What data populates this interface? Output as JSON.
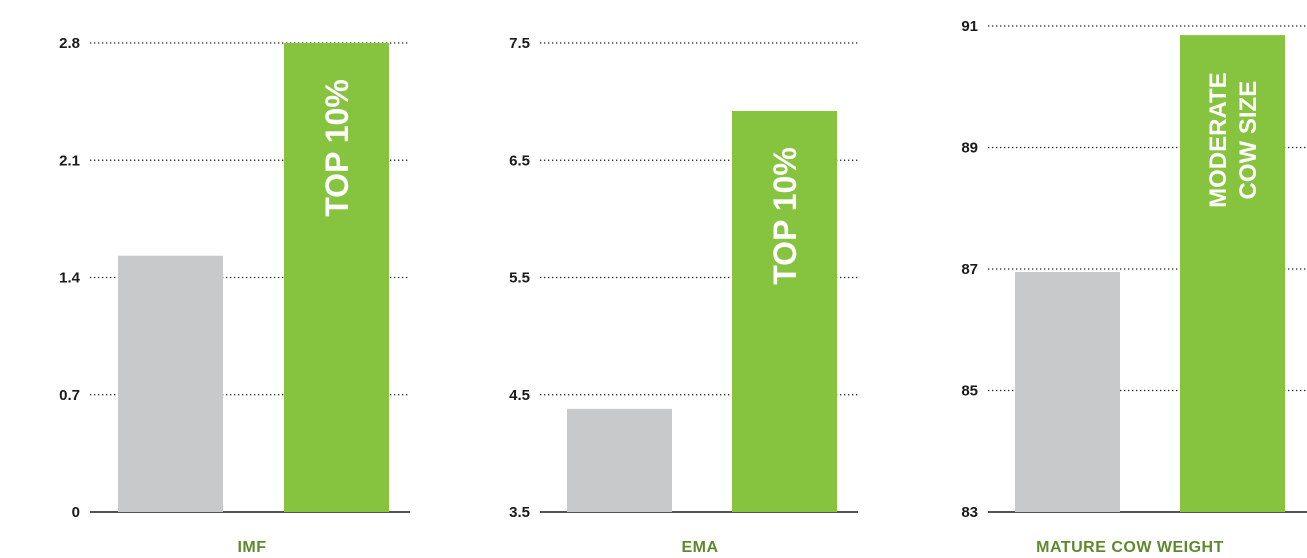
{
  "colors": {
    "baseline_bar": "#c8c9cb",
    "highlight_bar": "#86c440",
    "axis_label": "#5e8a2e",
    "grid": "#1a1a1a"
  },
  "chart_data": [
    {
      "type": "bar",
      "xlabel": "IMF",
      "categories": [
        "",
        ""
      ],
      "values": [
        1.53,
        2.8
      ],
      "ylim": [
        0,
        2.8
      ],
      "yticks": [
        0,
        0.7,
        1.4,
        2.1,
        2.8
      ],
      "ytick_labels": [
        "0",
        "0.7",
        "1.4",
        "2.1",
        "2.8"
      ],
      "annotations": [
        [],
        [
          "TOP 10%"
        ]
      ],
      "grid": true
    },
    {
      "type": "bar",
      "xlabel": "EMA",
      "categories": [
        "",
        ""
      ],
      "values": [
        4.38,
        6.92
      ],
      "ylim": [
        3.5,
        7.5
      ],
      "yticks": [
        3.5,
        4.5,
        5.5,
        6.5,
        7.5
      ],
      "ytick_labels": [
        "3.5",
        "4.5",
        "5.5",
        "6.5",
        "7.5"
      ],
      "annotations": [
        [],
        [
          "TOP 10%"
        ]
      ],
      "grid": true
    },
    {
      "type": "bar",
      "xlabel": "MATURE COW WEIGHT",
      "categories": [
        "",
        ""
      ],
      "values": [
        86.95,
        90.85
      ],
      "ylim": [
        83,
        91
      ],
      "yticks": [
        83,
        85,
        87,
        89,
        91
      ],
      "ytick_labels": [
        "83",
        "85",
        "87",
        "89",
        "91"
      ],
      "annotations": [
        [],
        [
          "MODERATE",
          "COW SIZE"
        ]
      ],
      "grid": true
    }
  ]
}
